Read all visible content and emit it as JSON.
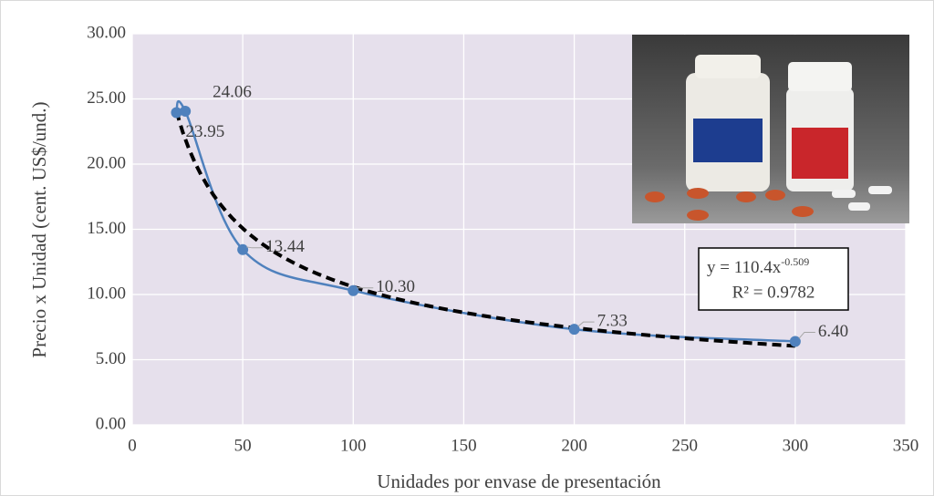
{
  "chart_data": {
    "type": "scatter_smooth",
    "x_label": "Unidades por envase de presentación",
    "y_label": "Precio x Unidad (cent. US$/und.)",
    "x": [
      20,
      24,
      50,
      100,
      200,
      300
    ],
    "values": [
      23.95,
      24.06,
      13.44,
      10.3,
      7.33,
      6.4
    ],
    "value_labels": [
      "23.95",
      "24.06",
      "13.44",
      "10.30",
      "7.33",
      "6.40"
    ],
    "color": "#4f81bd",
    "xlim": [
      0,
      350
    ],
    "xticks": [
      0,
      50,
      100,
      150,
      200,
      250,
      300,
      350
    ],
    "ylim": [
      0,
      30
    ],
    "yticks": [
      {
        "value": 0,
        "label": "0.00"
      },
      {
        "value": 5,
        "label": "5.00"
      },
      {
        "value": 10,
        "label": "10.00"
      },
      {
        "value": 15,
        "label": "15.00"
      },
      {
        "value": 20,
        "label": "20.00"
      },
      {
        "value": 25,
        "label": "25.00"
      },
      {
        "value": 30,
        "label": "30.00"
      }
    ],
    "grid": true,
    "trendline": {
      "kind": "power",
      "coefficient": 110.4,
      "exponent": -0.509,
      "color": "#000000",
      "equation": "y = 110.4x",
      "equation_exponent": "-0.509",
      "r2_label": "R² = 0.9782"
    }
  }
}
